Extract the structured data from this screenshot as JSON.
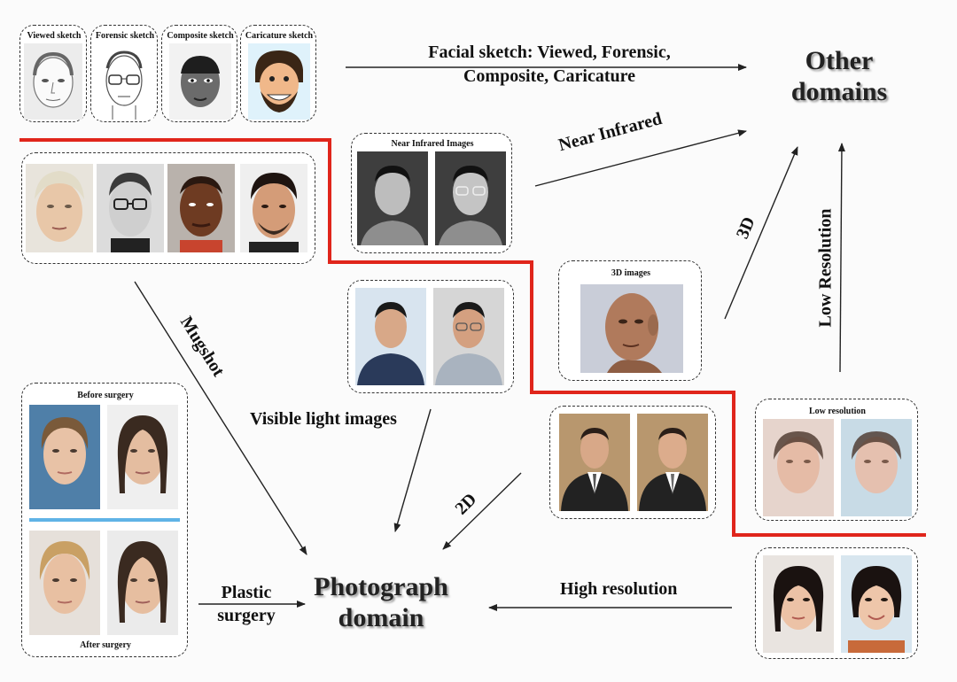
{
  "targets": {
    "other_domains": [
      "Other",
      "domains"
    ],
    "photograph_domain": [
      "Photograph",
      "domain"
    ]
  },
  "edge_labels": {
    "facial_sketch": [
      "Facial sketch: Viewed, Forensic,",
      "Composite, Caricature"
    ],
    "near_infrared": "Near Infrared",
    "three_d": "3D",
    "low_resolution": "Low Resolution",
    "mugshot": "Mugshot",
    "visible_light": "Visible light images",
    "two_d": "2D",
    "high_resolution": "High resolution",
    "plastic_surgery": [
      "Plastic",
      "surgery"
    ]
  },
  "panels": {
    "sketches": [
      "Viewed sketch",
      "Forensic sketch",
      "Composite sketch",
      "Caricature sketch"
    ],
    "near_infrared": "Near Infrared Images",
    "three_d": "3D images",
    "low_resolution": "Low resolution",
    "before_surgery": "Before surgery",
    "after_surgery": "After surgery"
  },
  "colors": {
    "divider": "#e0251b",
    "arrow": "#222222",
    "surgery_bar": "#5fb3e6"
  }
}
